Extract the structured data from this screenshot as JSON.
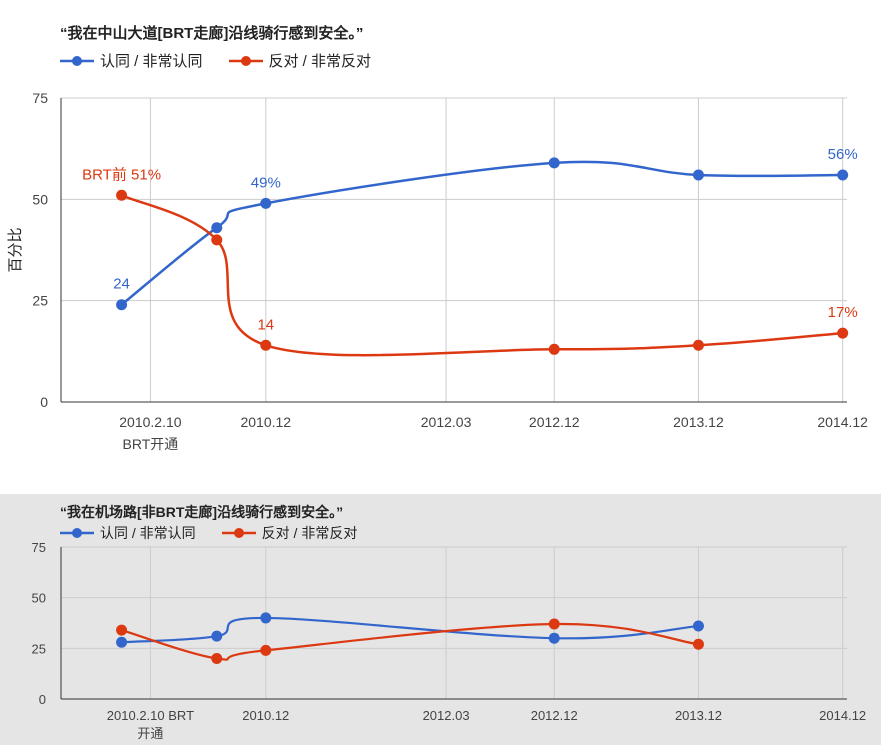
{
  "colors": {
    "agree": "#3366cc",
    "oppose": "#dc3912",
    "grid": "#cccccc",
    "axis": "#333333"
  },
  "chart_data": [
    {
      "type": "line",
      "title": "“我在中山大道[BRT走廊]沿线骑行感到安全。”",
      "xlabel": "",
      "ylabel": "百分比",
      "ylim": [
        0,
        75
      ],
      "yticks": [
        0,
        25,
        50,
        75
      ],
      "xlim": [
        2009.5,
        2014.95
      ],
      "grid": true,
      "legend_position": "top-left",
      "x_ticks": [
        {
          "x": 2010.12,
          "label": "2010.2.10",
          "label2": "BRT开通"
        },
        {
          "x": 2010.92,
          "label": "2010.12",
          "label2": ""
        },
        {
          "x": 2012.17,
          "label": "2012.03",
          "label2": ""
        },
        {
          "x": 2012.92,
          "label": "2012.12",
          "label2": ""
        },
        {
          "x": 2013.92,
          "label": "2013.12",
          "label2": ""
        },
        {
          "x": 2014.92,
          "label": "2014.12",
          "label2": ""
        }
      ],
      "series": [
        {
          "name": "认同 / 非常认同",
          "color": "#3366cc",
          "points": [
            [
              2009.92,
              24
            ],
            [
              2010.58,
              43
            ],
            [
              2010.92,
              49
            ],
            [
              2012.92,
              59
            ],
            [
              2013.92,
              56
            ],
            [
              2014.92,
              56
            ]
          ],
          "labels": [
            {
              "index": 0,
              "text": "24"
            },
            {
              "index": 2,
              "text": "49%"
            },
            {
              "index": 5,
              "text": "56%"
            }
          ]
        },
        {
          "name": "反对 / 非常反对",
          "color": "#dc3912",
          "points": [
            [
              2009.92,
              51
            ],
            [
              2010.58,
              40
            ],
            [
              2010.92,
              14
            ],
            [
              2012.92,
              13
            ],
            [
              2013.92,
              14
            ],
            [
              2014.92,
              17
            ]
          ],
          "labels": [
            {
              "index": 0,
              "text": "BRT前 51%"
            },
            {
              "index": 2,
              "text": "14"
            },
            {
              "index": 5,
              "text": "17%"
            }
          ]
        }
      ]
    },
    {
      "type": "line",
      "title": "“我在机场路[非BRT走廊]沿线骑行感到安全。”",
      "xlabel": "",
      "ylabel": "",
      "ylim": [
        0,
        75
      ],
      "yticks": [
        0,
        25,
        50,
        75
      ],
      "xlim": [
        2009.5,
        2014.95
      ],
      "grid": true,
      "legend_position": "top-left",
      "x_ticks": [
        {
          "x": 2010.12,
          "label": "2010.2.10 BRT",
          "label2": "开通"
        },
        {
          "x": 2010.92,
          "label": "2010.12",
          "label2": ""
        },
        {
          "x": 2012.17,
          "label": "2012.03",
          "label2": ""
        },
        {
          "x": 2012.92,
          "label": "2012.12",
          "label2": ""
        },
        {
          "x": 2013.92,
          "label": "2013.12",
          "label2": ""
        },
        {
          "x": 2014.92,
          "label": "2014.12",
          "label2": ""
        }
      ],
      "series": [
        {
          "name": "认同 / 非常认同",
          "color": "#3366cc",
          "points": [
            [
              2009.92,
              28
            ],
            [
              2010.58,
              31
            ],
            [
              2010.92,
              40
            ],
            [
              2012.92,
              30
            ],
            [
              2013.92,
              36
            ]
          ],
          "labels": []
        },
        {
          "name": "反对 / 非常反对",
          "color": "#dc3912",
          "points": [
            [
              2009.92,
              34
            ],
            [
              2010.58,
              20
            ],
            [
              2010.92,
              24
            ],
            [
              2012.92,
              37
            ],
            [
              2013.92,
              27
            ]
          ],
          "labels": []
        }
      ]
    }
  ]
}
